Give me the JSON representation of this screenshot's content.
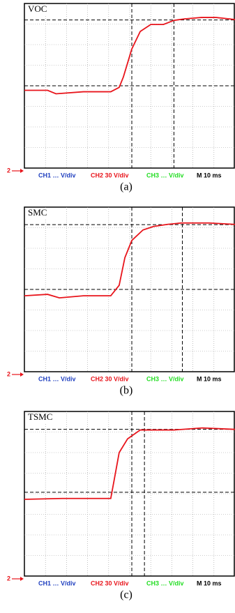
{
  "chart_data": [
    {
      "type": "line",
      "title": "VOC",
      "color": "#e8141b",
      "x": [
        0,
        1.1,
        1.5,
        2.8,
        4.1,
        4.5,
        4.7,
        5.1,
        5.5,
        6.0,
        6.6,
        7.1,
        7.6,
        8.4,
        9.1,
        10
      ],
      "values": [
        3.78,
        3.78,
        3.61,
        3.71,
        3.71,
        3.92,
        4.43,
        5.79,
        6.64,
        6.98,
        6.98,
        7.18,
        7.25,
        7.32,
        7.32,
        7.22
      ],
      "xlim": [
        0,
        10
      ],
      "ylim": [
        0,
        8
      ],
      "grid": true,
      "cursor_x": [
        5.1,
        7.1
      ],
      "cursor_y": [
        7.2,
        4.0
      ],
      "marker": "2",
      "channels": [
        {
          "label": "CH1 … V/div",
          "color": "#1f3fbf"
        },
        {
          "label": "CH2 30 V/div",
          "color": "#e8141b"
        },
        {
          "label": "CH3 … V/div",
          "color": "#22dd22"
        },
        {
          "label": "M 10 ms",
          "color": "#000000"
        }
      ],
      "caption": "(a)"
    },
    {
      "type": "line",
      "title": "SMC",
      "color": "#e8141b",
      "x": [
        0,
        1.1,
        1.66,
        2.8,
        4.1,
        4.5,
        4.77,
        5.1,
        5.63,
        6.13,
        6.79,
        7.45,
        8.77,
        10
      ],
      "values": [
        3.69,
        3.76,
        3.59,
        3.69,
        3.69,
        4.2,
        5.54,
        6.38,
        6.89,
        7.06,
        7.16,
        7.23,
        7.23,
        7.16
      ],
      "xlim": [
        0,
        10
      ],
      "ylim": [
        0,
        8
      ],
      "grid": true,
      "cursor_x": [
        5.1,
        7.5
      ],
      "cursor_y": [
        7.15,
        4.0
      ],
      "marker": "2",
      "channels": [
        {
          "label": "CH1 … V/div",
          "color": "#1f3fbf"
        },
        {
          "label": "CH2 30 V/div",
          "color": "#e8141b"
        },
        {
          "label": "CH3 … V/div",
          "color": "#22dd22"
        },
        {
          "label": "M 10 ms",
          "color": "#000000"
        }
      ],
      "caption": "(b)"
    },
    {
      "type": "line",
      "title": "TSMC",
      "color": "#e8141b",
      "x": [
        0,
        1.8,
        4.1,
        4.25,
        4.5,
        4.9,
        5.5,
        7.1,
        8.45,
        10
      ],
      "values": [
        3.73,
        3.77,
        3.77,
        4.6,
        6.0,
        6.67,
        7.1,
        7.1,
        7.2,
        7.13
      ],
      "xlim": [
        0,
        10
      ],
      "ylim": [
        0,
        8
      ],
      "grid": true,
      "cursor_x": [
        5.1,
        5.7
      ],
      "cursor_y": [
        7.13,
        4.07
      ],
      "marker": "2",
      "channels": [
        {
          "label": "CH1 … V/div",
          "color": "#1f3fbf"
        },
        {
          "label": "CH2 30 V/div",
          "color": "#e8141b"
        },
        {
          "label": "CH3 … V/div",
          "color": "#22dd22"
        },
        {
          "label": "M 10 ms",
          "color": "#000000"
        }
      ],
      "caption": "(c)"
    }
  ]
}
